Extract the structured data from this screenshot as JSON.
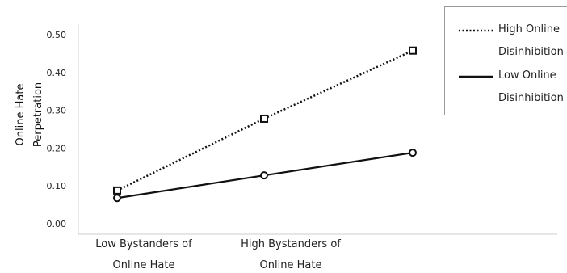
{
  "chart_data": {
    "type": "line",
    "y_label": "Online Hate Perpetration",
    "categories": [
      "Low Bystanders of Online Hate",
      "High Bystanders of Online Hate",
      null
    ],
    "series": [
      {
        "name": "High Online Disinhibition",
        "color": "#111111",
        "dash": "dotted",
        "marker": "square",
        "values": [
          0.09,
          0.28,
          0.46
        ]
      },
      {
        "name": "Low Online Disinhibition",
        "color": "#111111",
        "dash": "solid",
        "marker": "circle",
        "values": [
          0.07,
          0.13,
          0.19
        ]
      }
    ],
    "ylim": [
      0,
      0.5
    ],
    "yticks": [
      {
        "value": 0,
        "label": "0.00"
      },
      {
        "value": 0.1,
        "label": "0.10"
      },
      {
        "value": 0.2,
        "label": "0.20"
      },
      {
        "value": 0.3,
        "label": "0.30"
      },
      {
        "value": 0.4,
        "label": "0.40"
      },
      {
        "value": 0.5,
        "label": "0.50"
      }
    ],
    "grid": false,
    "legend": "top-right"
  }
}
